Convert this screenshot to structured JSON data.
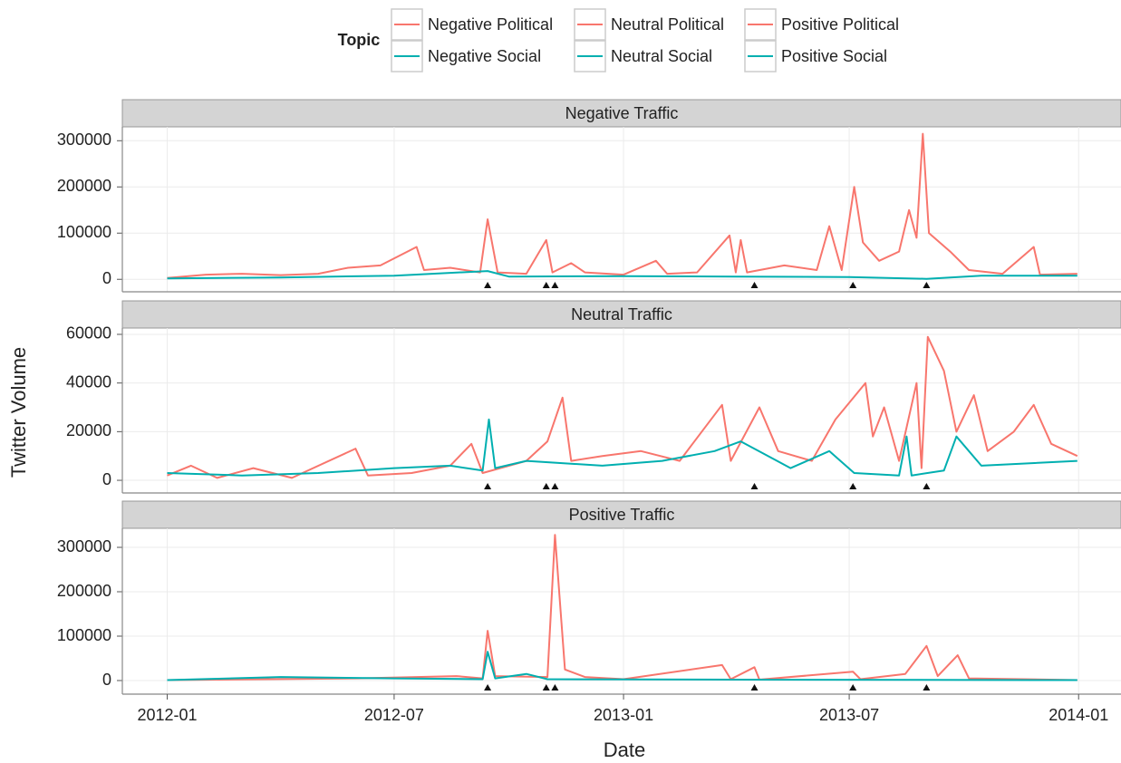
{
  "chart_data": {
    "type": "line",
    "legend_title": "Topic",
    "xlabel": "Date",
    "ylabel": "Twitter Volume",
    "xlim": [
      "2011-11-26",
      "2014-02-04"
    ],
    "xticks": [
      "2012-01",
      "2012-07",
      "2013-01",
      "2013-07",
      "2014-01"
    ],
    "grid": true,
    "events": [
      "2012-09-14",
      "2012-10-31",
      "2012-11-07",
      "2013-04-16",
      "2013-07-04",
      "2013-09-01"
    ],
    "panels": [
      {
        "title": "Negative Traffic",
        "ylim": [
          -27000,
          330000
        ],
        "yticks": [
          0,
          100000,
          200000,
          300000
        ],
        "series": [
          {
            "name": "Negative Political",
            "color": "#F8766D",
            "x": [
              "2012-01-01",
              "2012-02-01",
              "2012-03-01",
              "2012-04-01",
              "2012-05-01",
              "2012-05-25",
              "2012-06-20",
              "2012-07-19",
              "2012-07-25",
              "2012-08-15",
              "2012-09-08",
              "2012-09-14",
              "2012-09-22",
              "2012-10-15",
              "2012-10-31",
              "2012-11-05",
              "2012-11-20",
              "2012-12-01",
              "2013-01-01",
              "2013-01-27",
              "2013-02-05",
              "2013-03-01",
              "2013-03-27",
              "2013-04-01",
              "2013-04-05",
              "2013-04-10",
              "2013-05-10",
              "2013-06-05",
              "2013-06-15",
              "2013-06-25",
              "2013-07-05",
              "2013-07-12",
              "2013-07-25",
              "2013-08-10",
              "2013-08-18",
              "2013-08-24",
              "2013-08-29",
              "2013-09-03",
              "2013-09-20",
              "2013-10-05",
              "2013-11-01",
              "2013-11-26",
              "2013-12-01",
              "2013-12-31"
            ],
            "values": [
              3000,
              10000,
              12000,
              9000,
              12000,
              25000,
              30000,
              70000,
              20000,
              25000,
              15000,
              130000,
              15000,
              12000,
              85000,
              15000,
              35000,
              15000,
              10000,
              40000,
              12000,
              15000,
              95000,
              15000,
              85000,
              15000,
              30000,
              20000,
              115000,
              20000,
              200000,
              80000,
              40000,
              60000,
              150000,
              90000,
              315000,
              100000,
              60000,
              20000,
              12000,
              70000,
              10000,
              12000
            ]
          },
          {
            "name": "Negative Social",
            "color": "#00AFB0",
            "x": [
              "2012-01-01",
              "2012-04-01",
              "2012-07-01",
              "2012-09-14",
              "2012-10-01",
              "2013-01-01",
              "2013-04-01",
              "2013-07-01",
              "2013-09-01",
              "2013-10-15",
              "2013-12-31"
            ],
            "values": [
              2000,
              4000,
              8000,
              18000,
              6000,
              7000,
              6000,
              5000,
              1000,
              8000,
              8000
            ]
          }
        ]
      },
      {
        "title": "Neutral Traffic",
        "ylim": [
          -5200,
          62600
        ],
        "yticks": [
          0,
          20000,
          40000,
          60000
        ],
        "series": [
          {
            "name": "Neutral Political",
            "color": "#F8766D",
            "x": [
              "2012-01-01",
              "2012-01-20",
              "2012-02-10",
              "2012-03-10",
              "2012-04-10",
              "2012-05-31",
              "2012-06-10",
              "2012-07-15",
              "2012-08-15",
              "2012-09-01",
              "2012-09-10",
              "2012-10-15",
              "2012-11-01",
              "2012-11-13",
              "2012-11-20",
              "2012-12-15",
              "2013-01-15",
              "2013-02-15",
              "2013-03-21",
              "2013-03-28",
              "2013-04-20",
              "2013-05-05",
              "2013-06-01",
              "2013-06-20",
              "2013-07-14",
              "2013-07-20",
              "2013-07-29",
              "2013-08-10",
              "2013-08-24",
              "2013-08-28",
              "2013-09-02",
              "2013-09-15",
              "2013-09-25",
              "2013-10-09",
              "2013-10-20",
              "2013-11-10",
              "2013-11-26",
              "2013-12-10",
              "2013-12-31"
            ],
            "values": [
              2000,
              6000,
              1000,
              5000,
              1000,
              13000,
              2000,
              3000,
              6000,
              15000,
              3000,
              8000,
              16000,
              34000,
              8000,
              10000,
              12000,
              8000,
              31000,
              8000,
              30000,
              12000,
              8000,
              25000,
              40000,
              18000,
              30000,
              8000,
              40000,
              5000,
              59000,
              45000,
              20000,
              35000,
              12000,
              20000,
              31000,
              15000,
              10000
            ]
          },
          {
            "name": "Neutral Social",
            "color": "#00AFB0",
            "x": [
              "2012-01-01",
              "2012-03-01",
              "2012-05-01",
              "2012-07-01",
              "2012-08-15",
              "2012-09-10",
              "2012-09-15",
              "2012-09-20",
              "2012-10-15",
              "2012-12-15",
              "2013-02-01",
              "2013-03-15",
              "2013-04-05",
              "2013-05-15",
              "2013-06-15",
              "2013-07-05",
              "2013-08-10",
              "2013-08-16",
              "2013-08-20",
              "2013-09-15",
              "2013-09-25",
              "2013-10-15",
              "2013-12-31"
            ],
            "values": [
              3000,
              2000,
              3000,
              5000,
              6000,
              4000,
              25000,
              5000,
              8000,
              6000,
              8000,
              12000,
              16000,
              5000,
              12000,
              3000,
              2000,
              18000,
              2000,
              4000,
              18000,
              6000,
              8000
            ]
          }
        ]
      },
      {
        "title": "Positive Traffic",
        "ylim": [
          -30600,
          342900
        ],
        "yticks": [
          0,
          100000,
          200000,
          300000
        ],
        "series": [
          {
            "name": "Positive Political",
            "color": "#F8766D",
            "x": [
              "2012-01-01",
              "2012-06-01",
              "2012-08-20",
              "2012-09-10",
              "2012-09-14",
              "2012-09-20",
              "2012-11-01",
              "2012-11-07",
              "2012-11-15",
              "2012-12-01",
              "2013-01-01",
              "2013-03-21",
              "2013-03-28",
              "2013-04-16",
              "2013-04-20",
              "2013-07-04",
              "2013-07-10",
              "2013-08-15",
              "2013-09-01",
              "2013-09-10",
              "2013-09-26",
              "2013-10-05",
              "2013-12-31"
            ],
            "values": [
              1000,
              5000,
              10000,
              5000,
              112000,
              10000,
              8000,
              328000,
              25000,
              8000,
              3000,
              35000,
              3000,
              30000,
              2000,
              20000,
              3000,
              15000,
              78000,
              10000,
              57000,
              5000,
              1000
            ]
          },
          {
            "name": "Positive Social",
            "color": "#00AFB0",
            "x": [
              "2012-01-01",
              "2012-04-01",
              "2012-07-01",
              "2012-09-10",
              "2012-09-14",
              "2012-09-20",
              "2012-10-15",
              "2012-11-01",
              "2013-04-01",
              "2013-12-31"
            ],
            "values": [
              1000,
              8000,
              5000,
              3000,
              65000,
              5000,
              15000,
              3000,
              2000,
              1000
            ]
          }
        ]
      }
    ]
  }
}
